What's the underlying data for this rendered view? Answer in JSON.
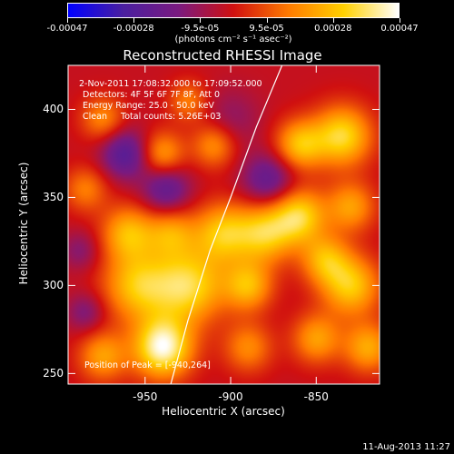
{
  "colorbar": {
    "ticks": [
      "-0.00047",
      "-0.00028",
      "-9.5e-05",
      "9.5e-05",
      "0.00028",
      "0.00047"
    ],
    "unit_label": "(photons cm⁻² s⁻¹ asec⁻²)",
    "colors": [
      "#0000ff",
      "#4a1fa0",
      "#7a1a80",
      "#d01010",
      "#ff7a00",
      "#ffd000",
      "#ffffff"
    ]
  },
  "chart_data": {
    "type": "heatmap",
    "title": "Reconstructed RHESSI Image",
    "xlabel": "Heliocentric X (arcsec)",
    "ylabel": "Heliocentric Y (arcsec)",
    "xlim": [
      -995,
      -813
    ],
    "ylim": [
      244,
      425
    ],
    "xticks": [
      -950,
      -900,
      -850
    ],
    "yticks": [
      250,
      300,
      350,
      400
    ],
    "value_range": [
      -0.00047,
      0.00047
    ],
    "peak_position": [
      -940,
      264
    ],
    "limb_curve": [
      [
        -935,
        244
      ],
      [
        -925,
        280
      ],
      [
        -912,
        320
      ],
      [
        -900,
        350
      ],
      [
        -885,
        390
      ],
      [
        -870,
        425
      ]
    ],
    "blobs": [
      {
        "x": -940,
        "y": 265,
        "r": 12,
        "v": 0.00047
      },
      {
        "x": -925,
        "y": 300,
        "r": 15,
        "v": 0.00036
      },
      {
        "x": -955,
        "y": 300,
        "r": 14,
        "v": 0.0003
      },
      {
        "x": -975,
        "y": 260,
        "r": 10,
        "v": 0.00024
      },
      {
        "x": -960,
        "y": 330,
        "r": 11,
        "v": 0.00028
      },
      {
        "x": -935,
        "y": 330,
        "r": 10,
        "v": 0.00022
      },
      {
        "x": -905,
        "y": 330,
        "r": 12,
        "v": 0.0003
      },
      {
        "x": -890,
        "y": 300,
        "r": 10,
        "v": 0.00028
      },
      {
        "x": -880,
        "y": 330,
        "r": 12,
        "v": 0.00032
      },
      {
        "x": -860,
        "y": 340,
        "r": 11,
        "v": 0.00034
      },
      {
        "x": -845,
        "y": 315,
        "r": 10,
        "v": 0.00026
      },
      {
        "x": -830,
        "y": 345,
        "r": 10,
        "v": 0.00024
      },
      {
        "x": -835,
        "y": 385,
        "r": 12,
        "v": 0.00036
      },
      {
        "x": -860,
        "y": 380,
        "r": 10,
        "v": 0.0003
      },
      {
        "x": -830,
        "y": 300,
        "r": 12,
        "v": 0.00032
      },
      {
        "x": -850,
        "y": 270,
        "r": 10,
        "v": 0.00024
      },
      {
        "x": -820,
        "y": 265,
        "r": 10,
        "v": 0.00026
      },
      {
        "x": -890,
        "y": 265,
        "r": 10,
        "v": 0.0002
      },
      {
        "x": -910,
        "y": 380,
        "r": 9,
        "v": 0.00022
      },
      {
        "x": -940,
        "y": 375,
        "r": 9,
        "v": 0.00024
      },
      {
        "x": -985,
        "y": 355,
        "r": 9,
        "v": 0.00018
      },
      {
        "x": -975,
        "y": 395,
        "r": 9,
        "v": 0.0002
      },
      {
        "x": -925,
        "y": 405,
        "r": 8,
        "v": 0.00018
      },
      {
        "x": -962,
        "y": 375,
        "r": 10,
        "v": -0.00025
      },
      {
        "x": -938,
        "y": 355,
        "r": 10,
        "v": -0.00022
      },
      {
        "x": -878,
        "y": 360,
        "r": 11,
        "v": -0.00022
      },
      {
        "x": -988,
        "y": 320,
        "r": 8,
        "v": -0.00012
      },
      {
        "x": -900,
        "y": 395,
        "r": 12,
        "v": -0.0001
      },
      {
        "x": -985,
        "y": 285,
        "r": 8,
        "v": -0.00014
      }
    ]
  },
  "annotation": {
    "time": "2-Nov-2011 17:08:32.000 to 17:09:52.000",
    "detectors": "Detectors: 4F 5F 6F 7F 8F, Att 0",
    "energy": "Energy Range: 25.0 - 50.0 keV",
    "clean": "Clean     Total counts: 5.26E+03",
    "peak": "Position of Peak = [-940,264]"
  },
  "footer": {
    "date": "11-Aug-2013 11:27"
  }
}
